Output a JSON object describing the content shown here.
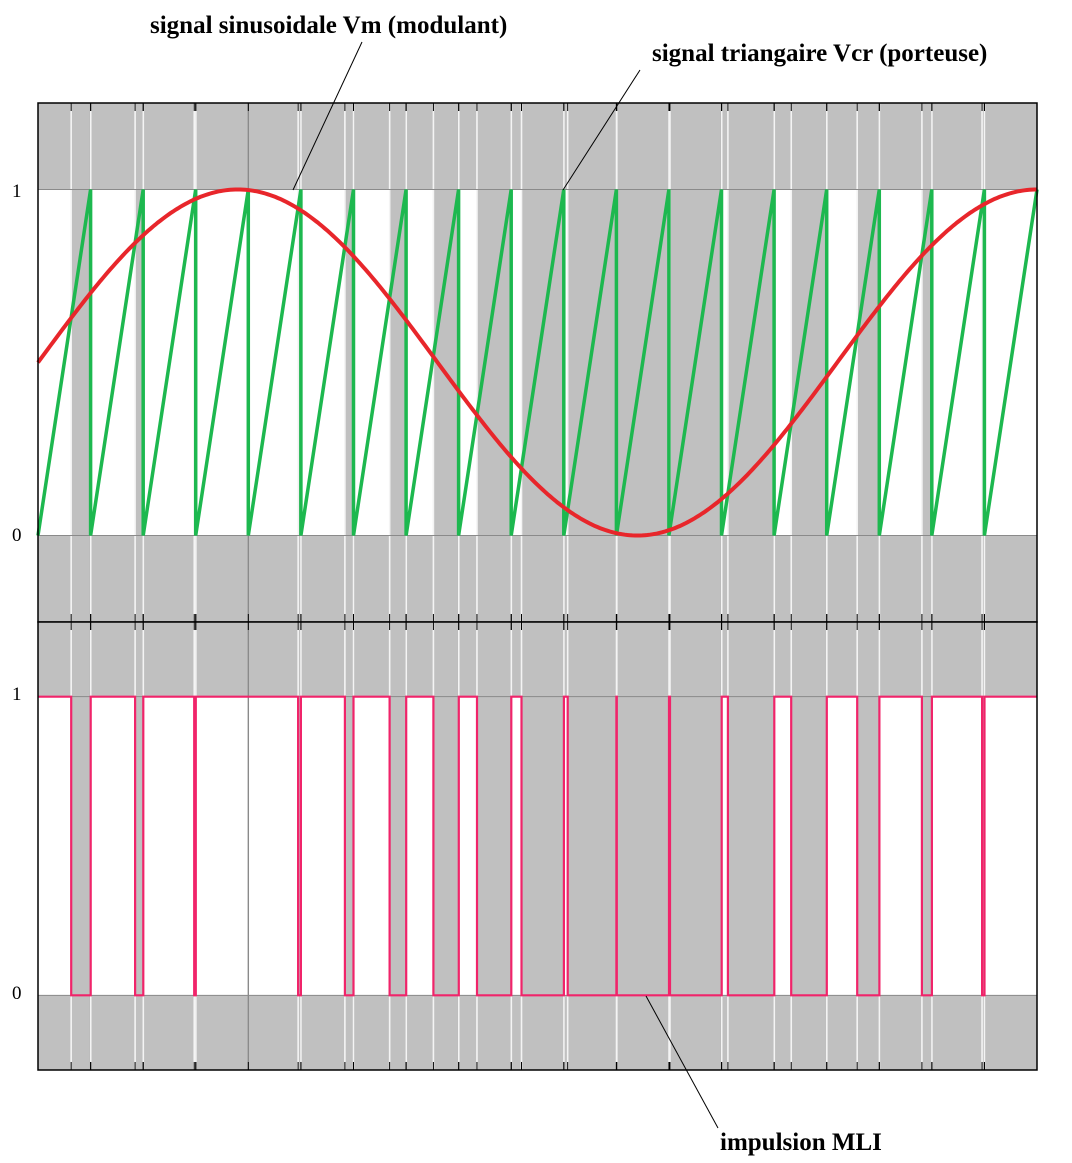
{
  "annotations": {
    "modulant": "signal sinusoidale Vm (modulant)",
    "porteuse": "signal triangaire Vcr (porteuse)",
    "mli": "impulsion MLI"
  },
  "colors": {
    "background": "#c0c0c0",
    "white": "#ffffff",
    "gridline": "#8a8a8a",
    "sine": "#e8262b",
    "carrier": "#1db84f",
    "pwm": "#f0246a"
  },
  "chart_data": [
    {
      "type": "line",
      "ylim": [
        -0.25,
        1.25
      ],
      "yticks": [
        "0",
        "1"
      ],
      "grid": true,
      "series": [
        {
          "name": "signal sinusoidale Vm (modulant)",
          "kind": "sine",
          "offset": 0.5,
          "amplitude": 0.5,
          "cycles": 1.25
        },
        {
          "name": "signal triangaire Vcr (porteuse)",
          "kind": "sawtooth",
          "min": 0,
          "max": 1,
          "periods": 19
        }
      ]
    },
    {
      "type": "line",
      "ylim": [
        -0.25,
        1.25
      ],
      "yticks": [
        "0",
        "1"
      ],
      "grid": true,
      "series": [
        {
          "name": "impulsion MLI",
          "kind": "pulse",
          "rule": "1 when Vm > Vcr, else 0"
        }
      ]
    }
  ]
}
